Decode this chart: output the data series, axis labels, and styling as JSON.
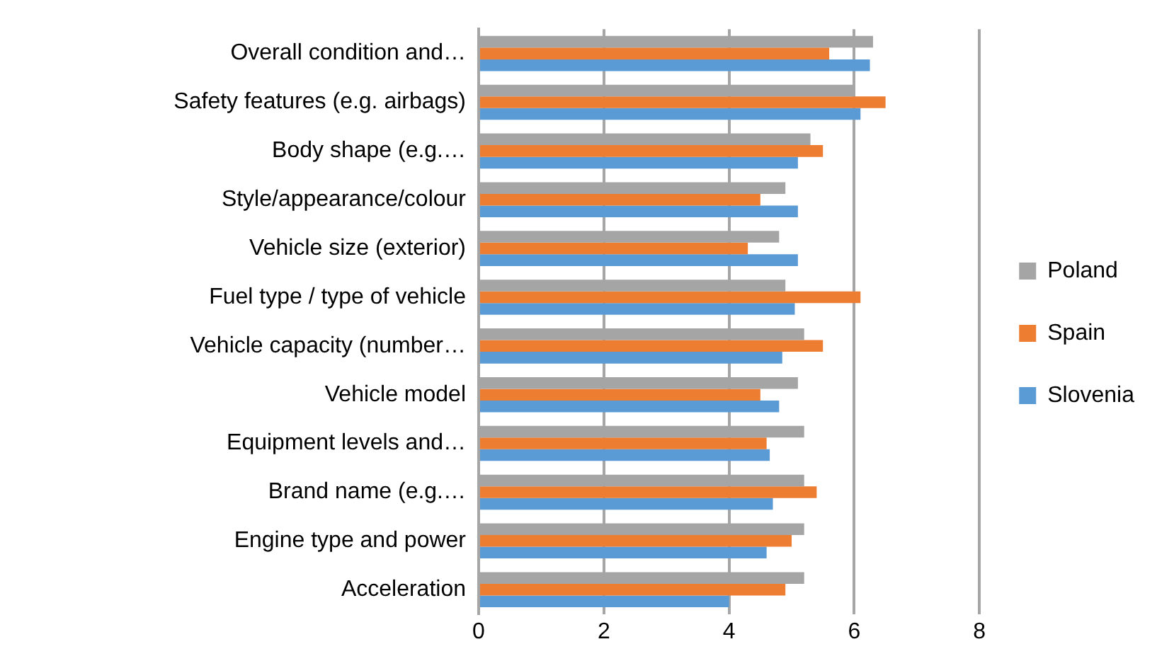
{
  "chart_data": {
    "type": "bar",
    "orientation": "horizontal",
    "categories": [
      "Overall condition and…",
      "Safety features (e.g. airbags)",
      "Body shape (e.g.…",
      "Style/appearance/colour",
      "Vehicle size (exterior)",
      "Fuel type / type of vehicle",
      "Vehicle capacity (number…",
      "Vehicle model",
      "Equipment levels and…",
      "Brand name (e.g.…",
      "Engine type and power",
      "Acceleration"
    ],
    "series": [
      {
        "name": "Poland",
        "color": "#a5a5a5",
        "values": [
          6.3,
          6.0,
          5.3,
          4.9,
          4.8,
          4.9,
          5.2,
          5.1,
          5.2,
          5.2,
          5.2,
          5.2
        ]
      },
      {
        "name": "Spain",
        "color": "#ed7d31",
        "values": [
          5.6,
          6.5,
          5.5,
          4.5,
          4.3,
          6.1,
          5.5,
          4.5,
          4.6,
          5.4,
          5.0,
          4.9
        ]
      },
      {
        "name": "Slovenia",
        "color": "#5b9bd5",
        "values": [
          6.25,
          6.1,
          5.1,
          5.1,
          5.1,
          5.05,
          4.85,
          4.8,
          4.65,
          4.7,
          4.6,
          4.0
        ]
      }
    ],
    "xlim": [
      0,
      8
    ],
    "xticks": [
      0,
      2,
      4,
      6,
      8
    ],
    "grid": "x",
    "legend": "right"
  }
}
